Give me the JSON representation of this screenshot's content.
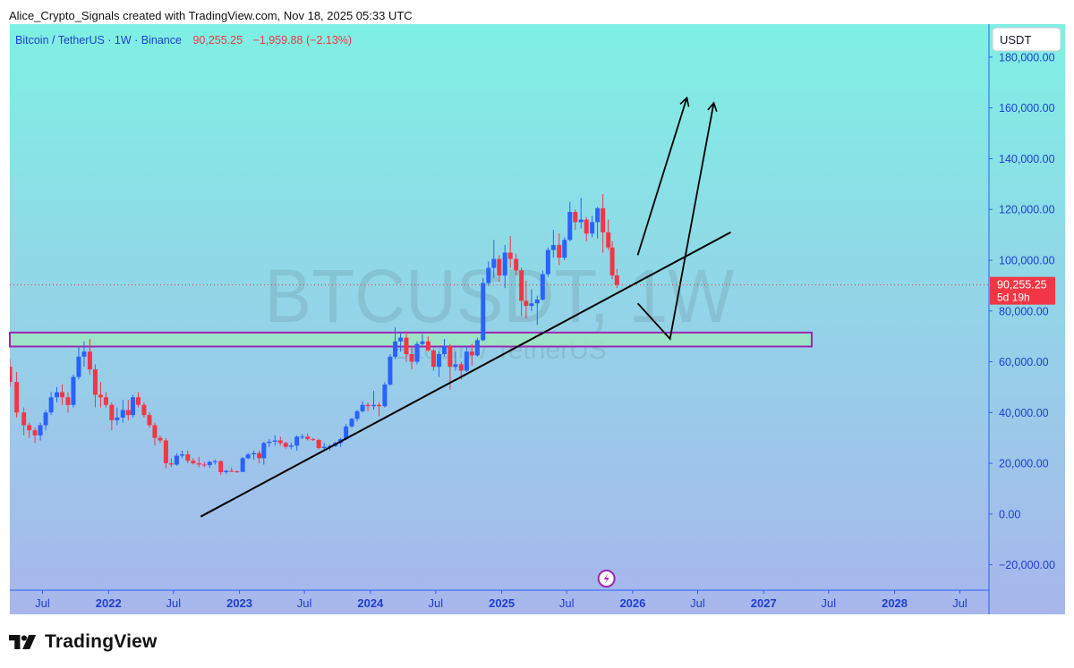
{
  "header": {
    "caption": "Alice_Crypto_Signals created with TradingView.com, Nov 18, 2025 05:33 UTC"
  },
  "footer": {
    "brand": "TradingView",
    "logo_icon": "tradingview-logo-icon"
  },
  "chart_data": {
    "type": "candlestick",
    "legend": {
      "symbol": "Bitcoin / TetherUS · 1W · Binance",
      "price": "90,255.25",
      "change": "−1,959.88 (−2.13%)"
    },
    "watermark": {
      "symbol": "BTCUSDT, 1W",
      "name": "Bitcoin / TetherUS"
    },
    "currency_label": "USDT",
    "ylim": [
      -30000,
      193000
    ],
    "y_ticks": [
      180000,
      160000,
      140000,
      120000,
      100000,
      80000,
      60000,
      40000,
      20000,
      0,
      -20000
    ],
    "y_tick_labels": [
      "180,000.00",
      "160,000.00",
      "140,000.00",
      "120,000.00",
      "100,000.00",
      "80,000.00",
      "60,000.00",
      "40,000.00",
      "20,000.00",
      "0.00",
      "−20,000.00"
    ],
    "xlim": [
      "2021-04-01",
      "2028-09-20"
    ],
    "x_ticks": [
      {
        "label": "Jul",
        "date": "2021-07-01",
        "bold": false
      },
      {
        "label": "2022",
        "date": "2022-01-01",
        "bold": true
      },
      {
        "label": "Jul",
        "date": "2022-07-01",
        "bold": false
      },
      {
        "label": "2023",
        "date": "2023-01-01",
        "bold": true
      },
      {
        "label": "Jul",
        "date": "2023-07-01",
        "bold": false
      },
      {
        "label": "2024",
        "date": "2024-01-01",
        "bold": true
      },
      {
        "label": "Jul",
        "date": "2024-07-01",
        "bold": false
      },
      {
        "label": "2025",
        "date": "2025-01-01",
        "bold": true
      },
      {
        "label": "Jul",
        "date": "2025-07-01",
        "bold": false
      },
      {
        "label": "2026",
        "date": "2026-01-01",
        "bold": true
      },
      {
        "label": "Jul",
        "date": "2026-07-01",
        "bold": false
      },
      {
        "label": "2027",
        "date": "2027-01-01",
        "bold": true
      },
      {
        "label": "Jul",
        "date": "2027-07-01",
        "bold": false
      },
      {
        "label": "2028",
        "date": "2028-01-01",
        "bold": true
      },
      {
        "label": "Jul",
        "date": "2028-07-01",
        "bold": false
      }
    ],
    "last_price": {
      "value": 90255.25,
      "label": "90,255.25",
      "countdown": "5d 19h",
      "color": "#f23645"
    },
    "colors": {
      "up": "#2962ff",
      "down": "#f23645",
      "background_top": "#7ff0e3",
      "background_bottom": "#a8b6ec",
      "zone_fill": "#9ee6c1",
      "zone_border": "#9c27b0",
      "trendline": "#000000",
      "axis_text": "#1e3fd0",
      "axis_line": "#2962ff"
    },
    "zone": {
      "from": "2021-04-01",
      "to": "2027-05-15",
      "low": 66000,
      "high": 71500
    },
    "trendline": {
      "from": {
        "date": "2022-09-15",
        "value": -1000
      },
      "to": {
        "date": "2026-10-01",
        "value": 111000
      }
    },
    "projection_arrows": [
      [
        [
          "2026-01-15",
          102000
        ],
        [
          "2026-06-01",
          164000
        ]
      ],
      [
        [
          "2026-01-15",
          83000
        ],
        [
          "2026-04-15",
          69000
        ],
        [
          "2026-08-15",
          162000
        ]
      ]
    ],
    "event_icon": "lightning-icon",
    "series": [
      {
        "name": "Bitcoin / TetherUS",
        "ohlc_points": [
          [
            "2021-04-01",
            58000,
            61000,
            50000,
            52000
          ],
          [
            "2021-04-20",
            52000,
            56000,
            38000,
            40000
          ],
          [
            "2021-05-10",
            40000,
            42000,
            31000,
            35000
          ],
          [
            "2021-05-25",
            35000,
            36000,
            30000,
            33000
          ],
          [
            "2021-06-10",
            33000,
            34000,
            28000,
            31000
          ],
          [
            "2021-06-25",
            31000,
            36000,
            29000,
            35000
          ],
          [
            "2021-07-10",
            35000,
            41000,
            33000,
            40000
          ],
          [
            "2021-07-25",
            40000,
            48000,
            39000,
            46000
          ],
          [
            "2021-08-10",
            46000,
            50000,
            44000,
            48000
          ],
          [
            "2021-08-25",
            48000,
            51000,
            43000,
            46000
          ],
          [
            "2021-09-10",
            46000,
            48000,
            40000,
            43000
          ],
          [
            "2021-09-25",
            43000,
            55000,
            42000,
            54000
          ],
          [
            "2021-10-10",
            54000,
            66000,
            53000,
            62000
          ],
          [
            "2021-10-25",
            62000,
            68000,
            58000,
            64000
          ],
          [
            "2021-11-10",
            64000,
            69000,
            55000,
            57000
          ],
          [
            "2021-11-25",
            57000,
            59000,
            42000,
            47000
          ],
          [
            "2021-12-10",
            47000,
            52000,
            42000,
            46000
          ],
          [
            "2021-12-25",
            46000,
            48000,
            42000,
            43000
          ],
          [
            "2022-01-10",
            43000,
            44000,
            33000,
            37000
          ],
          [
            "2022-01-25",
            37000,
            42000,
            35000,
            38000
          ],
          [
            "2022-02-10",
            38000,
            45000,
            36000,
            41000
          ],
          [
            "2022-02-25",
            41000,
            45000,
            37000,
            39000
          ],
          [
            "2022-03-10",
            39000,
            47000,
            38000,
            46000
          ],
          [
            "2022-03-25",
            46000,
            48000,
            42000,
            43000
          ],
          [
            "2022-04-10",
            43000,
            44000,
            38000,
            39000
          ],
          [
            "2022-04-25",
            39000,
            40000,
            34000,
            35000
          ],
          [
            "2022-05-10",
            35000,
            36000,
            27000,
            30000
          ],
          [
            "2022-05-25",
            30000,
            31000,
            28000,
            29000
          ],
          [
            "2022-06-10",
            29000,
            30000,
            18000,
            20000
          ],
          [
            "2022-06-25",
            20000,
            22000,
            18500,
            19500
          ],
          [
            "2022-07-10",
            19500,
            24000,
            19000,
            23000
          ],
          [
            "2022-07-25",
            23000,
            25000,
            22000,
            23500
          ],
          [
            "2022-08-10",
            23500,
            25000,
            20000,
            21000
          ],
          [
            "2022-08-25",
            21000,
            22000,
            19500,
            20000
          ],
          [
            "2022-09-10",
            20000,
            22500,
            18500,
            19500
          ],
          [
            "2022-09-25",
            19500,
            20500,
            18500,
            19300
          ],
          [
            "2022-10-10",
            19300,
            21000,
            18200,
            20500
          ],
          [
            "2022-10-25",
            20500,
            21500,
            19500,
            20800
          ],
          [
            "2022-11-10",
            20800,
            21200,
            15500,
            16500
          ],
          [
            "2022-11-25",
            16500,
            17500,
            15800,
            17000
          ],
          [
            "2022-12-10",
            17000,
            18300,
            16500,
            16800
          ],
          [
            "2022-12-25",
            16800,
            17200,
            16300,
            16600
          ],
          [
            "2023-01-10",
            16600,
            22500,
            16500,
            22000
          ],
          [
            "2023-01-25",
            22000,
            24000,
            21500,
            23500
          ],
          [
            "2023-02-10",
            23500,
            25000,
            21500,
            24000
          ],
          [
            "2023-02-25",
            24000,
            25000,
            20000,
            22000
          ],
          [
            "2023-03-10",
            22000,
            28500,
            19500,
            28000
          ],
          [
            "2023-03-25",
            28000,
            29500,
            26500,
            28500
          ],
          [
            "2023-04-10",
            28500,
            31000,
            27000,
            29000
          ],
          [
            "2023-04-25",
            29000,
            30500,
            27000,
            28000
          ],
          [
            "2023-05-10",
            28000,
            28500,
            25800,
            26500
          ],
          [
            "2023-05-25",
            26500,
            28000,
            25500,
            27000
          ],
          [
            "2023-06-10",
            27000,
            31000,
            25000,
            30500
          ],
          [
            "2023-06-25",
            30500,
            31500,
            29500,
            30500
          ],
          [
            "2023-07-10",
            30500,
            31800,
            29000,
            29500
          ],
          [
            "2023-07-25",
            29500,
            30000,
            28800,
            29200
          ],
          [
            "2023-08-10",
            29200,
            29700,
            25500,
            26000
          ],
          [
            "2023-08-25",
            26000,
            28000,
            25500,
            26500
          ],
          [
            "2023-09-10",
            26500,
            27500,
            25000,
            26800
          ],
          [
            "2023-09-25",
            26800,
            28500,
            26500,
            28000
          ],
          [
            "2023-10-10",
            28000,
            30000,
            26500,
            29500
          ],
          [
            "2023-10-25",
            29500,
            35500,
            29000,
            34500
          ],
          [
            "2023-11-10",
            34500,
            38000,
            34000,
            37500
          ],
          [
            "2023-11-25",
            37500,
            41000,
            36500,
            40500
          ],
          [
            "2023-12-10",
            40500,
            44500,
            40000,
            43000
          ],
          [
            "2023-12-25",
            43000,
            44000,
            40500,
            42500
          ],
          [
            "2024-01-10",
            42500,
            48500,
            41000,
            43000
          ],
          [
            "2024-01-25",
            43000,
            44000,
            38500,
            42500
          ],
          [
            "2024-02-10",
            42500,
            52000,
            42000,
            51000
          ],
          [
            "2024-02-25",
            51000,
            63000,
            50500,
            62000
          ],
          [
            "2024-03-10",
            62000,
            73500,
            61000,
            68000
          ],
          [
            "2024-03-25",
            68000,
            71500,
            64000,
            69500
          ],
          [
            "2024-04-10",
            69500,
            72000,
            60000,
            63000
          ],
          [
            "2024-04-25",
            63000,
            66000,
            57000,
            60000
          ],
          [
            "2024-05-10",
            60000,
            68000,
            59000,
            67000
          ],
          [
            "2024-05-25",
            67000,
            71000,
            66000,
            68000
          ],
          [
            "2024-06-10",
            68000,
            70000,
            64000,
            64500
          ],
          [
            "2024-06-25",
            64500,
            65000,
            56500,
            58000
          ],
          [
            "2024-07-10",
            58000,
            64000,
            54000,
            63000
          ],
          [
            "2024-07-25",
            63000,
            69000,
            62000,
            66000
          ],
          [
            "2024-08-10",
            66000,
            67000,
            49000,
            58000
          ],
          [
            "2024-08-25",
            58000,
            64000,
            56500,
            59000
          ],
          [
            "2024-09-10",
            59000,
            60000,
            53000,
            56500
          ],
          [
            "2024-09-25",
            56500,
            66000,
            56000,
            64000
          ],
          [
            "2024-10-10",
            64000,
            67000,
            58500,
            62500
          ],
          [
            "2024-10-25",
            62500,
            69500,
            62000,
            68500
          ],
          [
            "2024-11-10",
            68500,
            93000,
            68000,
            91000
          ],
          [
            "2024-11-25",
            91000,
            99500,
            90000,
            97000
          ],
          [
            "2024-12-10",
            97000,
            108000,
            93000,
            100500
          ],
          [
            "2024-12-25",
            100500,
            102000,
            91500,
            94000
          ],
          [
            "2025-01-10",
            94000,
            106000,
            89000,
            103000
          ],
          [
            "2025-01-25",
            103000,
            109500,
            97000,
            100500
          ],
          [
            "2025-02-10",
            100500,
            102500,
            94000,
            96000
          ],
          [
            "2025-02-25",
            96000,
            97000,
            78000,
            84000
          ],
          [
            "2025-03-10",
            84000,
            92000,
            77000,
            82000
          ],
          [
            "2025-03-25",
            82000,
            88500,
            80000,
            83000
          ],
          [
            "2025-04-10",
            83000,
            86000,
            74500,
            84500
          ],
          [
            "2025-04-25",
            84500,
            96000,
            84000,
            94500
          ],
          [
            "2025-05-10",
            94500,
            105000,
            93500,
            104000
          ],
          [
            "2025-05-25",
            104000,
            112000,
            101000,
            106000
          ],
          [
            "2025-06-10",
            106000,
            110500,
            98000,
            101000
          ],
          [
            "2025-06-25",
            101000,
            109000,
            100000,
            108000
          ],
          [
            "2025-07-10",
            108000,
            123000,
            107500,
            119000
          ],
          [
            "2025-07-25",
            119000,
            120000,
            112000,
            115000
          ],
          [
            "2025-08-10",
            115000,
            124500,
            112500,
            116000
          ],
          [
            "2025-08-25",
            116000,
            117000,
            107500,
            110500
          ],
          [
            "2025-09-10",
            110500,
            117500,
            109000,
            115000
          ],
          [
            "2025-09-25",
            115000,
            121000,
            108500,
            120500
          ],
          [
            "2025-10-10",
            120500,
            126000,
            103000,
            111000
          ],
          [
            "2025-10-25",
            111000,
            116000,
            104000,
            105000
          ],
          [
            "2025-11-05",
            105000,
            107500,
            92500,
            94000
          ],
          [
            "2025-11-18",
            94000,
            96500,
            89000,
            90255.25
          ]
        ]
      }
    ]
  }
}
